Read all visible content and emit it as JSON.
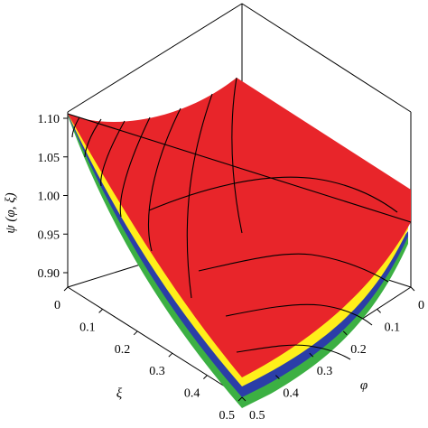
{
  "chart_data": {
    "type": "surface3d",
    "title": "",
    "zlabel": "ψ (φ, ξ)",
    "xlabel": "ξ",
    "ylabel": "φ",
    "zlim": [
      0.88,
      1.12
    ],
    "xlim": [
      0,
      0.5
    ],
    "ylim": [
      0,
      0.5
    ],
    "z_ticks": [
      "0.90",
      "0.95",
      "1.00",
      "1.05",
      "1.10"
    ],
    "xi_ticks": [
      "0",
      "0.1",
      "0.2",
      "0.3",
      "0.4",
      "0.5"
    ],
    "phi_ticks": [
      "0",
      "0.1",
      "0.2",
      "0.3",
      "0.4",
      "0.5"
    ],
    "series": [
      {
        "color": "#e8252a"
      },
      {
        "color": "#ffef1a"
      },
      {
        "color": "#2b3ea8"
      },
      {
        "color": "#3cb043"
      }
    ]
  }
}
